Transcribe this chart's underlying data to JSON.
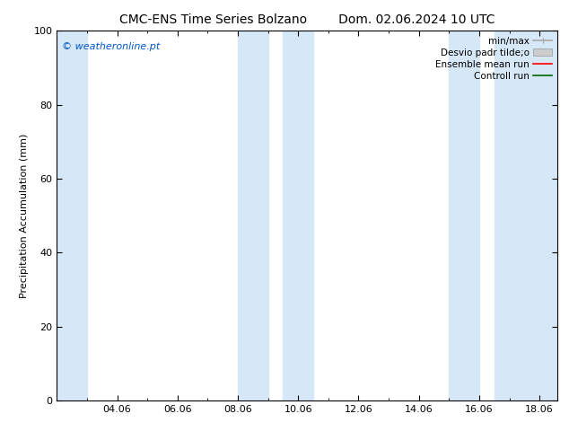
{
  "title_left": "CMC-ENS Time Series Bolzano",
  "title_right": "Dom. 02.06.2024 10 UTC",
  "ylabel": "Precipitation Accumulation (mm)",
  "watermark": "© weatheronline.pt",
  "watermark_color": "#0055cc",
  "ylim": [
    0,
    100
  ],
  "yticks": [
    0,
    20,
    40,
    60,
    80,
    100
  ],
  "xlim_start": 2.0,
  "xlim_end": 18.6,
  "xtick_labels": [
    "04.06",
    "06.06",
    "08.06",
    "10.06",
    "12.06",
    "14.06",
    "16.06",
    "18.06"
  ],
  "xtick_positions": [
    4,
    6,
    8,
    10,
    12,
    14,
    16,
    18
  ],
  "shaded_bands": [
    {
      "x_start": 2.0,
      "x_end": 3.0
    },
    {
      "x_start": 8.0,
      "x_end": 9.0
    },
    {
      "x_start": 9.5,
      "x_end": 10.5
    },
    {
      "x_start": 15.0,
      "x_end": 16.0
    },
    {
      "x_start": 16.5,
      "x_end": 18.6
    }
  ],
  "shaded_color": "#d6e8f7",
  "background_color": "#ffffff",
  "plot_background_color": "#ffffff",
  "legend_entries": [
    {
      "label": "min/max",
      "color": "#aaaaaa",
      "lw": 1.2,
      "style": "minmax"
    },
    {
      "label": "Desvio padr tilde;o",
      "color": "#cccccc",
      "lw": 6,
      "style": "std"
    },
    {
      "label": "Ensemble mean run",
      "color": "#ff0000",
      "lw": 1.2,
      "style": "line"
    },
    {
      "label": "Controll run",
      "color": "#006600",
      "lw": 1.2,
      "style": "line"
    }
  ],
  "title_fontsize": 10,
  "axis_label_fontsize": 8,
  "tick_fontsize": 8,
  "legend_fontsize": 7.5,
  "watermark_fontsize": 8
}
